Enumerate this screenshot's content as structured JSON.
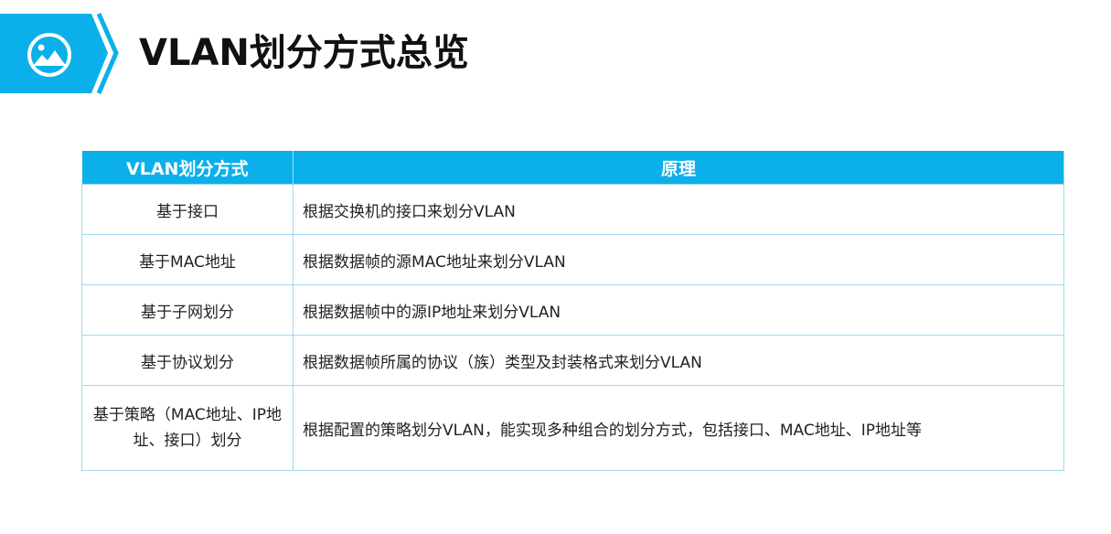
{
  "header": {
    "title": "VLAN划分方式总览",
    "icon": "image-icon",
    "accent": "#0BB0EA"
  },
  "table": {
    "columns": [
      "VLAN划分方式",
      "原理"
    ],
    "rows": [
      [
        "基于接口",
        "根据交换机的接口来划分VLAN"
      ],
      [
        "基于MAC地址",
        "根据数据帧的源MAC地址来划分VLAN"
      ],
      [
        "基于子网划分",
        "根据数据帧中的源IP地址来划分VLAN"
      ],
      [
        "基于协议划分",
        "根据数据帧所属的协议（族）类型及封装格式来划分VLAN"
      ],
      [
        "基于策略（MAC地址、IP地址、接口）划分",
        "根据配置的策略划分VLAN，能实现多种组合的划分方式，包括接口、MAC地址、IP地址等"
      ]
    ]
  }
}
